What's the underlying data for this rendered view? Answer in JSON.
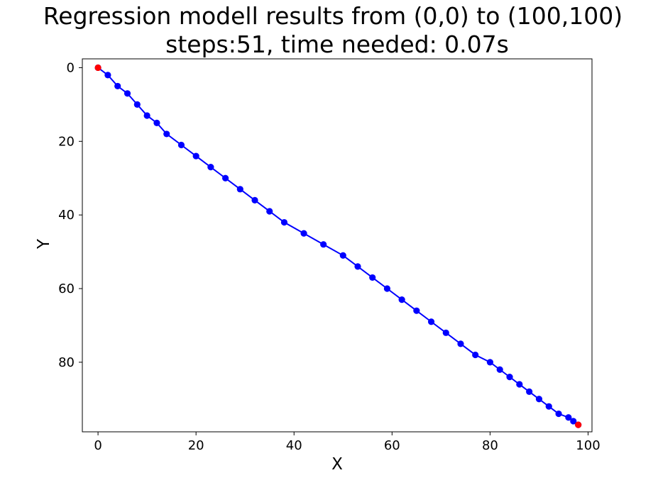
{
  "chart_data": {
    "type": "line",
    "title": "Regression modell results from (0,0) to (100,100)",
    "subtitle": "steps:51, time needed: 0.07s",
    "xlabel": "X",
    "ylabel": "Y",
    "xlim": [
      -3.2,
      100.8
    ],
    "ylim": [
      98.9,
      -2.4
    ],
    "y_inverted": true,
    "grid": false,
    "xticks": [
      0,
      20,
      40,
      60,
      80,
      100
    ],
    "yticks": [
      0,
      20,
      40,
      60,
      80
    ],
    "x_tick_labels": [
      "0",
      "20",
      "40",
      "60",
      "80",
      "100"
    ],
    "y_tick_labels": [
      "0",
      "20",
      "40",
      "60",
      "80"
    ],
    "series": [
      {
        "line_color": "#0000ff",
        "marker_color": "#0000ff",
        "x": [
          0,
          2,
          4,
          6,
          8,
          10,
          12,
          14,
          17,
          20,
          23,
          26,
          29,
          32,
          35,
          38,
          42,
          46,
          50,
          53,
          56,
          59,
          62,
          65,
          68,
          71,
          74,
          77,
          80,
          82,
          84,
          86,
          88,
          90,
          92,
          94,
          96,
          97,
          98
        ],
        "y": [
          0,
          2,
          5,
          7,
          10,
          13,
          15,
          18,
          21,
          24,
          27,
          30,
          33,
          36,
          39,
          42,
          45,
          48,
          51,
          54,
          57,
          60,
          63,
          66,
          69,
          72,
          75,
          78,
          80,
          82,
          84,
          86,
          88,
          90,
          92,
          94,
          95,
          96,
          97
        ]
      }
    ],
    "endpoints": {
      "color": "#ff0000",
      "points": [
        {
          "x": 0,
          "y": 0
        },
        {
          "x": 98,
          "y": 97
        }
      ]
    }
  }
}
